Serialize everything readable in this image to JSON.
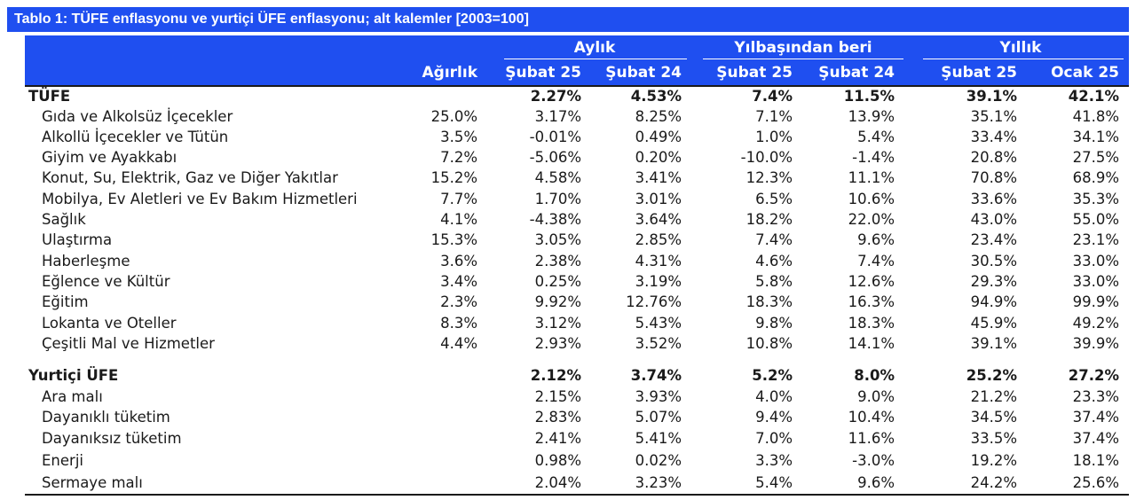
{
  "title": "Tablo 1: TÜFE enflasyonu ve yurtiçi ÜFE enflasyonu; alt kalemler [2003=100]",
  "groups": {
    "aylik": "Aylık",
    "ytd": "Yılbaşından beri",
    "yillik": "Yıllık"
  },
  "columns": [
    "Ağırlık",
    "Şubat 25",
    "Şubat 24",
    "Şubat 25",
    "Şubat 24",
    "Şubat 25",
    "Ocak 25"
  ],
  "rows": [
    {
      "label": "TÜFE",
      "w": "",
      "c1": "2.27%",
      "c2": "4.53%",
      "c3": "7.4%",
      "c4": "11.5%",
      "c5": "39.1%",
      "c6": "42.1%"
    },
    {
      "label": "Gıda ve Alkolsüz İçecekler",
      "w": "25.0%",
      "c1": "3.17%",
      "c2": "8.25%",
      "c3": "7.1%",
      "c4": "13.9%",
      "c5": "35.1%",
      "c6": "41.8%"
    },
    {
      "label": "Alkollü İçecekler ve Tütün",
      "w": "3.5%",
      "c1": "-0.01%",
      "c2": "0.49%",
      "c3": "1.0%",
      "c4": "5.4%",
      "c5": "33.4%",
      "c6": "34.1%"
    },
    {
      "label": "Giyim ve Ayakkabı",
      "w": "7.2%",
      "c1": "-5.06%",
      "c2": "0.20%",
      "c3": "-10.0%",
      "c4": "-1.4%",
      "c5": "20.8%",
      "c6": "27.5%"
    },
    {
      "label": "Konut, Su, Elektrik, Gaz ve Diğer Yakıtlar",
      "w": "15.2%",
      "c1": "4.58%",
      "c2": "3.41%",
      "c3": "12.3%",
      "c4": "11.1%",
      "c5": "70.8%",
      "c6": "68.9%"
    },
    {
      "label": "Mobilya, Ev Aletleri ve Ev Bakım Hizmetleri",
      "w": "7.7%",
      "c1": "1.70%",
      "c2": "3.01%",
      "c3": "6.5%",
      "c4": "10.6%",
      "c5": "33.6%",
      "c6": "35.3%"
    },
    {
      "label": "Sağlık",
      "w": "4.1%",
      "c1": "-4.38%",
      "c2": "3.64%",
      "c3": "18.2%",
      "c4": "22.0%",
      "c5": "43.0%",
      "c6": "55.0%"
    },
    {
      "label": "Ulaştırma",
      "w": "15.3%",
      "c1": "3.05%",
      "c2": "2.85%",
      "c3": "7.4%",
      "c4": "9.6%",
      "c5": "23.4%",
      "c6": "23.1%"
    },
    {
      "label": "Haberleşme",
      "w": "3.6%",
      "c1": "2.38%",
      "c2": "4.31%",
      "c3": "4.6%",
      "c4": "7.4%",
      "c5": "30.5%",
      "c6": "33.0%"
    },
    {
      "label": "Eğlence ve Kültür",
      "w": "3.4%",
      "c1": "0.25%",
      "c2": "3.19%",
      "c3": "5.8%",
      "c4": "12.6%",
      "c5": "29.3%",
      "c6": "33.0%"
    },
    {
      "label": "Eğitim",
      "w": "2.3%",
      "c1": "9.92%",
      "c2": "12.76%",
      "c3": "18.3%",
      "c4": "16.3%",
      "c5": "94.9%",
      "c6": "99.9%"
    },
    {
      "label": "Lokanta ve Oteller",
      "w": "8.3%",
      "c1": "3.12%",
      "c2": "5.43%",
      "c3": "9.8%",
      "c4": "18.3%",
      "c5": "45.9%",
      "c6": "49.2%"
    },
    {
      "label": "Çeşitli Mal ve Hizmetler",
      "w": "4.4%",
      "c1": "2.93%",
      "c2": "3.52%",
      "c3": "10.8%",
      "c4": "14.1%",
      "c5": "39.1%",
      "c6": "39.9%"
    },
    {
      "label": "Yurtiçi ÜFE",
      "w": "",
      "c1": "2.12%",
      "c2": "3.74%",
      "c3": "5.2%",
      "c4": "8.0%",
      "c5": "25.2%",
      "c6": "27.2%"
    },
    {
      "label": "Ara malı",
      "w": "",
      "c1": "2.15%",
      "c2": "3.93%",
      "c3": "4.0%",
      "c4": "9.0%",
      "c5": "21.2%",
      "c6": "23.3%"
    },
    {
      "label": "Dayanıklı tüketim",
      "w": "",
      "c1": "2.83%",
      "c2": "5.07%",
      "c3": "9.4%",
      "c4": "10.4%",
      "c5": "34.5%",
      "c6": "37.4%"
    },
    {
      "label": "Dayanıksız tüketim",
      "w": "",
      "c1": "2.41%",
      "c2": "5.41%",
      "c3": "7.0%",
      "c4": "11.6%",
      "c5": "33.5%",
      "c6": "37.4%"
    },
    {
      "label": "Enerji",
      "w": "",
      "c1": "0.98%",
      "c2": "0.02%",
      "c3": "3.3%",
      "c4": "-3.0%",
      "c5": "19.2%",
      "c6": "18.1%"
    },
    {
      "label": "Sermaye malı",
      "w": "",
      "c1": "2.04%",
      "c2": "3.23%",
      "c3": "5.4%",
      "c4": "9.6%",
      "c5": "24.2%",
      "c6": "25.6%"
    }
  ]
}
